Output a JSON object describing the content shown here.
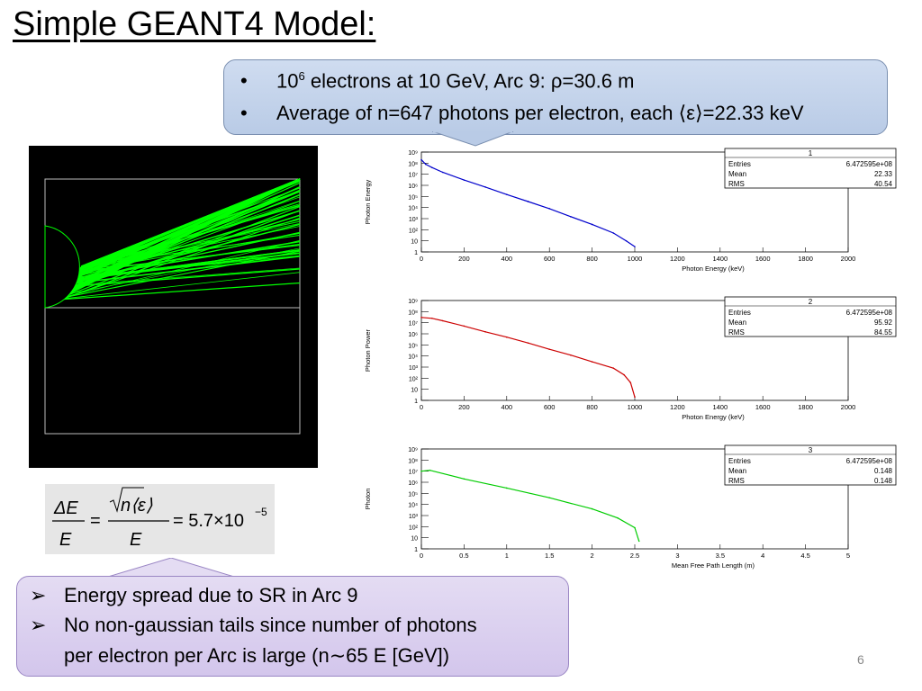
{
  "slide": {
    "title": "Simple GEANT4 Model:",
    "page_number": "6"
  },
  "top_callout": {
    "bullets": [
      {
        "mark": "•",
        "text_parts": [
          "10",
          "6",
          " electrons at 10 GeV, Arc 9: ρ=30.6 m"
        ]
      },
      {
        "mark": "•",
        "text": "Average of n=647 photons per electron, each ⟨ε⟩=22.33 keV"
      }
    ]
  },
  "bottom_callout": {
    "bullets": [
      {
        "mark": "➢",
        "text": "Energy spread due to SR in Arc 9"
      },
      {
        "mark": "➢",
        "text": "No non-gaussian tails since number of photons"
      },
      {
        "mark": "",
        "text": "per electron per Arc is large (n∼65 E [GeV])"
      }
    ]
  },
  "formula": {
    "lhs_num": "ΔE",
    "lhs_den": "E",
    "rhs_num": "n⟨ε⟩",
    "rhs_den": "E",
    "value": "= 5.7×10",
    "exponent": "−5",
    "equals": "="
  },
  "simulation": {
    "track_color": "#00ff00",
    "background": "#000000"
  },
  "chart_data": [
    {
      "type": "line",
      "title": "1",
      "xlabel": "Photon Energy (keV)",
      "ylabel": "Photon Energy",
      "xlim": [
        0,
        2000
      ],
      "ylim": [
        1,
        1000000000
      ],
      "log_y": true,
      "xticks": [
        "0",
        "200",
        "400",
        "600",
        "800",
        "1000",
        "1200",
        "1400",
        "1600",
        "1800",
        "2000"
      ],
      "yticks": [
        "1",
        "10",
        "10²",
        "10³",
        "10⁴",
        "10⁵",
        "10⁶",
        "10⁷",
        "10⁸",
        "10⁹"
      ],
      "color": "#0000cc",
      "x": [
        0,
        20,
        50,
        100,
        200,
        300,
        400,
        500,
        600,
        700,
        800,
        900,
        960,
        1000
      ],
      "y": [
        200000000,
        80000000,
        40000000,
        15000000,
        3000000,
        700000,
        150000,
        35000,
        8000,
        1500,
        300,
        50,
        10,
        3
      ],
      "stats": {
        "Entries": "6.472595e+08",
        "Mean": "22.33",
        "RMS": "40.54"
      }
    },
    {
      "type": "line",
      "title": "2",
      "xlabel": "Photon Energy (keV)",
      "ylabel": "Photon Power",
      "xlim": [
        0,
        2000
      ],
      "ylim": [
        1,
        1000000000
      ],
      "log_y": true,
      "xticks": [
        "0",
        "200",
        "400",
        "600",
        "800",
        "1000",
        "1200",
        "1400",
        "1600",
        "1800",
        "2000"
      ],
      "yticks": [
        "1",
        "10",
        "10²",
        "10³",
        "10⁴",
        "10⁵",
        "10⁶",
        "10⁷",
        "10⁸",
        "10⁹"
      ],
      "color": "#cc0000",
      "x": [
        0,
        50,
        100,
        200,
        300,
        400,
        500,
        600,
        700,
        800,
        900,
        950,
        980,
        1000
      ],
      "y": [
        30000000,
        25000000,
        15000000,
        5000000,
        1500000,
        500000,
        150000,
        40000,
        12000,
        3000,
        800,
        200,
        40,
        2
      ],
      "stats": {
        "Entries": "6.472595e+08",
        "Mean": "95.92",
        "RMS": "84.55"
      }
    },
    {
      "type": "line",
      "title": "3",
      "xlabel": "Mean Free Path Length (m)",
      "ylabel": "Photon",
      "xlim": [
        0,
        5
      ],
      "ylim": [
        1,
        1000000000
      ],
      "log_y": true,
      "xticks": [
        "0",
        "0.5",
        "1",
        "1.5",
        "2",
        "2.5",
        "3",
        "3.5",
        "4",
        "4.5",
        "5"
      ],
      "yticks": [
        "1",
        "10",
        "10²",
        "10³",
        "10⁴",
        "10⁵",
        "10⁶",
        "10⁷",
        "10⁸",
        "10⁹"
      ],
      "color": "#00cc00",
      "x": [
        0,
        0.1,
        0.5,
        1.0,
        1.5,
        2.0,
        2.3,
        2.5,
        2.55
      ],
      "y": [
        10000000,
        12000000,
        2000000,
        300000,
        40000,
        4000,
        600,
        80,
        5
      ],
      "stats": {
        "Entries": "6.472595e+08",
        "Mean": "0.148",
        "RMS": "0.148"
      }
    }
  ]
}
